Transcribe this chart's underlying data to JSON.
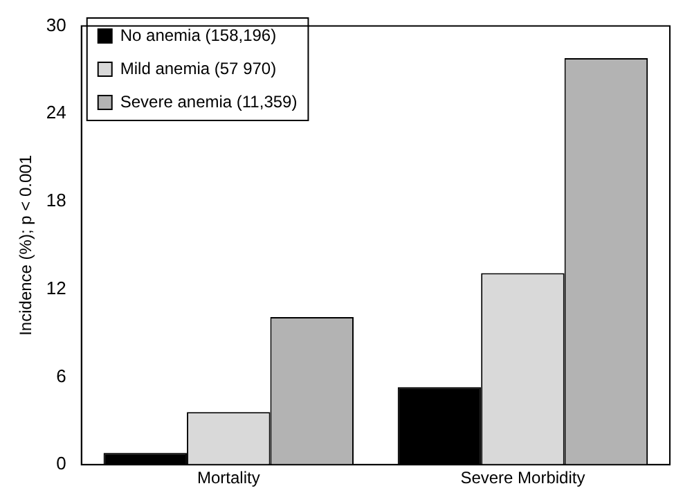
{
  "chart_data": {
    "type": "bar",
    "ylabel": "Incidence (%); p < 0.001",
    "categories": [
      "Mortality",
      "Severe Morbidity"
    ],
    "series": [
      {
        "name": "No anemia (158,196)",
        "color": "#000000",
        "values": [
          0.8,
          5.3
        ]
      },
      {
        "name": "Mild anemia (57 970)",
        "color": "#d9d9d9",
        "values": [
          3.6,
          13.1
        ]
      },
      {
        "name": "Severe anemia (11,359)",
        "color": "#b3b3b3",
        "values": [
          10.1,
          27.8
        ]
      }
    ],
    "ylim": [
      0,
      30
    ],
    "yticks": [
      0,
      6,
      12,
      18,
      24,
      30
    ],
    "grid": false,
    "legend": "top left"
  }
}
